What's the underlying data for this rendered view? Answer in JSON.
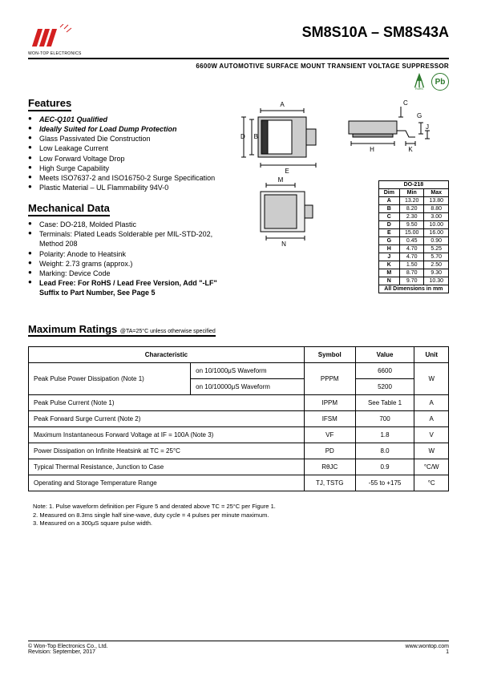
{
  "header": {
    "company": "WON-TOP ELECTRONICS",
    "title": "SM8S10A – SM8S43A",
    "subtitle": "6600W AUTOMOTIVE SURFACE MOUNT TRANSIENT VOLTAGE SUPPRESSOR",
    "rohs_label": "RoHS",
    "pb_label": "Pb"
  },
  "sections": {
    "features_title": "Features",
    "mechanical_title": "Mechanical Data",
    "ratings_title": "Maximum Ratings",
    "ratings_cond": "@TA=25°C unless otherwise specified"
  },
  "features": [
    {
      "text": "AEC-Q101 Qualified",
      "style": "bold-italic"
    },
    {
      "text": "Ideally Suited for Load Dump Protection",
      "style": "bold-italic"
    },
    {
      "text": "Glass Passivated Die Construction",
      "style": ""
    },
    {
      "text": "Low Leakage Current",
      "style": ""
    },
    {
      "text": "Low Forward Voltage Drop",
      "style": ""
    },
    {
      "text": "High Surge Capability",
      "style": ""
    },
    {
      "text": "Meets ISO7637-2 and ISO16750-2 Surge Specification",
      "style": ""
    },
    {
      "text": "Plastic Material – UL Flammability 94V-0",
      "style": ""
    }
  ],
  "mechanical": [
    {
      "text": "Case: DO-218, Molded Plastic",
      "style": ""
    },
    {
      "text": "Terminals: Plated Leads Solderable per MIL-STD-202, Method 208",
      "style": ""
    },
    {
      "text": "Polarity: Anode to Heatsink",
      "style": ""
    },
    {
      "text": "Weight: 2.73 grams (approx.)",
      "style": ""
    },
    {
      "text": "Marking: Device Code",
      "style": ""
    },
    {
      "text": "Lead Free: For RoHS / Lead Free Version, Add \"-LF\" Suffix to Part Number, See Page 5",
      "style": "bold"
    }
  ],
  "dim_table": {
    "header": "DO-218",
    "cols": [
      "Dim",
      "Min",
      "Max"
    ],
    "rows": [
      [
        "A",
        "13.20",
        "13.80"
      ],
      [
        "B",
        "8.20",
        "8.80"
      ],
      [
        "C",
        "2.30",
        "3.00"
      ],
      [
        "D",
        "9.50",
        "10.00"
      ],
      [
        "E",
        "15.00",
        "16.00"
      ],
      [
        "G",
        "0.45",
        "0.90"
      ],
      [
        "H",
        "4.70",
        "5.25"
      ],
      [
        "J",
        "4.70",
        "5.70"
      ],
      [
        "K",
        "1.50",
        "2.50"
      ],
      [
        "M",
        "8.70",
        "9.30"
      ],
      [
        "N",
        "9.70",
        "10.30"
      ]
    ],
    "footer": "All Dimensions in mm"
  },
  "ratings": {
    "headers": [
      "Characteristic",
      "Symbol",
      "Value",
      "Unit"
    ],
    "rows": [
      {
        "char": "Peak Pulse Power Dissipation (Note 1)",
        "sub1": "on 10/1000μS Waveform",
        "sub2": "on 10/10000μS Waveform",
        "symbol": "PPPM",
        "val1": "6600",
        "val2": "5200",
        "unit": "W"
      },
      {
        "char": "Peak Pulse Current (Note 1)",
        "symbol": "IPPM",
        "val": "See Table 1",
        "unit": "A"
      },
      {
        "char": "Peak Forward Surge Current (Note 2)",
        "symbol": "IFSM",
        "val": "700",
        "unit": "A"
      },
      {
        "char": "Maximum Instantaneous Forward Voltage at IF = 100A (Note 3)",
        "symbol": "VF",
        "val": "1.8",
        "unit": "V"
      },
      {
        "char": "Power Dissipation on Infinite Heatsink at TC = 25°C",
        "symbol": "PD",
        "val": "8.0",
        "unit": "W"
      },
      {
        "char": "Typical Thermal Resistance, Junction to Case",
        "symbol": "RθJC",
        "val": "0.9",
        "unit": "°C/W"
      },
      {
        "char": "Operating and Storage Temperature Range",
        "symbol": "TJ, TSTG",
        "val": "-55 to +175",
        "unit": "°C"
      }
    ]
  },
  "notes": {
    "n1": "Note: 1. Pulse waveform definition per Figure 5 and derated above TC = 25°C per Figure 1.",
    "n2": "2. Measured on 8.3ms single half sine-wave, duty cycle = 4 pulses per minute maximum.",
    "n3": "3. Measured on a 300μS square pulse width."
  },
  "footer": {
    "left1": "© Won-Top Electronics Co., Ltd.",
    "left2": "Revision: September, 2017",
    "right": "www.wontop.com",
    "page": "1"
  },
  "diagram_labels": {
    "A": "A",
    "B": "B",
    "C": "C",
    "D": "D",
    "E": "E",
    "G": "G",
    "H": "H",
    "J": "J",
    "K": "K",
    "M": "M",
    "N": "N"
  }
}
